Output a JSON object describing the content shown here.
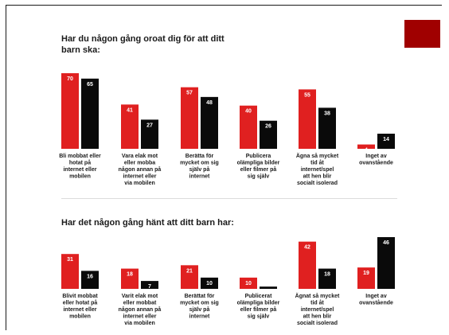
{
  "colors": {
    "series_a": "#e02020",
    "series_b": "#0a0a0a",
    "accent": "#a00000",
    "value_text": "#ffffff"
  },
  "chart_data": [
    {
      "type": "bar",
      "title": "Har du någon gång oroat dig för att ditt barn ska:",
      "xlabel": "",
      "ylabel": "",
      "ylim": [
        0,
        70
      ],
      "categories": [
        "Bli mobbat eller hotat på internet eller mobilen",
        "Vara elak mot eller mobba någon annan på internet eller via mobilen",
        "Berätta för mycket om sig själv på internet",
        "Publicera olämpliga bilder eller filmer på sig själv",
        "Ägna så mycket tid åt internet/spel att hen blir socialt isolerad",
        "Inget av ovanstående"
      ],
      "series": [
        {
          "values": [
            70,
            41,
            57,
            40,
            55,
            4
          ]
        },
        {
          "values": [
            65,
            27,
            48,
            26,
            38,
            14
          ]
        }
      ],
      "grid": false,
      "legend": "none"
    },
    {
      "type": "bar",
      "title": "Har det någon gång hänt att ditt barn har:",
      "xlabel": "",
      "ylabel": "",
      "ylim": [
        0,
        46
      ],
      "categories": [
        "Blivit mobbat eller hotat på internet eller mobilen",
        "Varit elak mot eller mobbat någon annan på internet eller via mobilen",
        "Berättat för mycket om sig själv på internet",
        "Publicerat olämpliga bilder eller filmer på sig själv",
        "Ägnat så mycket tid åt internet/spel att hen blir socialt isolerad",
        "Inget av ovanstående"
      ],
      "series": [
        {
          "values": [
            31,
            18,
            21,
            10,
            42,
            19
          ]
        },
        {
          "values": [
            16,
            7,
            10,
            2,
            18,
            46
          ]
        }
      ],
      "grid": false,
      "legend": "none"
    }
  ]
}
